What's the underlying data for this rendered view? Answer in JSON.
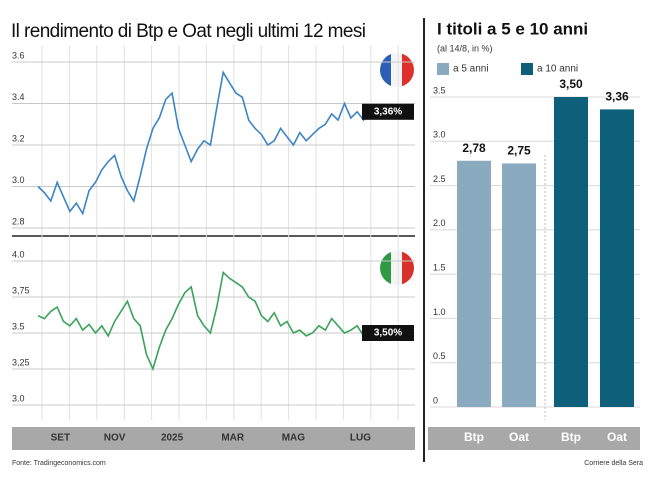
{
  "chart_data": [
    {
      "type": "line",
      "title": "Il rendimento di Btp e Oat negli ultimi 12 mesi",
      "source": "Fonte: Tradingeconomics.com",
      "xlim": [
        0,
        52
      ],
      "xticks": [
        {
          "value": 3.5,
          "label": "SET"
        },
        {
          "value": 12,
          "label": "NOV"
        },
        {
          "value": 21,
          "label": "2025"
        },
        {
          "value": 30.5,
          "label": "MAR"
        },
        {
          "value": 40,
          "label": "MAG"
        },
        {
          "value": 50.5,
          "label": "LUG"
        }
      ],
      "ylim": [
        2.8,
        3.6
      ],
      "yticks": [
        2.8,
        {
          "value": 3,
          "label": "3.0"
        },
        3.2,
        3.4,
        3.6
      ],
      "grid": true,
      "series": [
        {
          "name": "Oat",
          "color": "#3d84c6",
          "values": [
            3.0,
            2.97,
            2.93,
            3.02,
            2.95,
            2.88,
            2.92,
            2.87,
            2.98,
            3.02,
            3.08,
            3.12,
            3.15,
            3.05,
            2.98,
            2.93,
            3.05,
            3.18,
            3.28,
            3.33,
            3.42,
            3.45,
            3.28,
            3.2,
            3.12,
            3.18,
            3.22,
            3.2,
            3.38,
            3.55,
            3.5,
            3.45,
            3.43,
            3.32,
            3.28,
            3.25,
            3.2,
            3.22,
            3.28,
            3.24,
            3.2,
            3.26,
            3.22,
            3.25,
            3.28,
            3.3,
            3.35,
            3.32,
            3.4,
            3.33,
            3.36,
            3.32,
            3.36
          ],
          "value_labels": [
            null,
            null,
            null,
            null,
            null,
            null,
            null,
            null,
            null,
            null,
            null,
            null,
            null,
            null,
            null,
            null,
            null,
            null,
            null,
            null,
            null,
            null,
            null,
            null,
            null,
            null,
            null,
            null,
            null,
            null,
            null,
            null,
            null,
            null,
            null,
            null,
            null,
            null,
            null,
            null,
            null,
            null,
            null,
            null,
            null,
            null,
            null,
            null,
            null,
            null,
            null,
            null,
            "3,36%"
          ]
        }
      ]
    },
    {
      "type": "line",
      "xlim": [
        0,
        52
      ],
      "ylim": [
        3,
        4
      ],
      "yticks": [
        {
          "value": 3,
          "label": "3.0"
        },
        {
          "value": 3.25,
          "label": "3,25"
        },
        3.5,
        {
          "value": 3.75,
          "label": "3,75"
        },
        {
          "value": 4,
          "label": "4.0"
        }
      ],
      "grid": true,
      "series": [
        {
          "name": "Btp",
          "color": "#3aa35a",
          "values": [
            3.62,
            3.6,
            3.65,
            3.68,
            3.58,
            3.55,
            3.6,
            3.52,
            3.56,
            3.5,
            3.55,
            3.48,
            3.58,
            3.65,
            3.72,
            3.6,
            3.55,
            3.35,
            3.25,
            3.4,
            3.52,
            3.6,
            3.7,
            3.78,
            3.82,
            3.62,
            3.55,
            3.5,
            3.68,
            3.92,
            3.88,
            3.85,
            3.82,
            3.75,
            3.72,
            3.62,
            3.58,
            3.64,
            3.55,
            3.58,
            3.5,
            3.52,
            3.48,
            3.5,
            3.55,
            3.52,
            3.6,
            3.55,
            3.5,
            3.52,
            3.55,
            3.48,
            3.5
          ],
          "value_labels": [
            null,
            null,
            null,
            null,
            null,
            null,
            null,
            null,
            null,
            null,
            null,
            null,
            null,
            null,
            null,
            null,
            null,
            null,
            null,
            null,
            null,
            null,
            null,
            null,
            null,
            null,
            null,
            null,
            null,
            null,
            null,
            null,
            null,
            null,
            null,
            null,
            null,
            null,
            null,
            null,
            null,
            null,
            null,
            null,
            null,
            null,
            null,
            null,
            null,
            null,
            null,
            null,
            "3,50%"
          ]
        }
      ]
    },
    {
      "type": "bar",
      "title": "I titoli a 5 e 10 anni",
      "subtitle": "(al 14/8, in %)",
      "credit": "Corriere della Sera",
      "categories": [
        "Btp",
        "Oat",
        "Btp",
        "Oat"
      ],
      "ylim": [
        0,
        3.5
      ],
      "yticks": [
        0,
        {
          "value": 0.5,
          "label": "0.5"
        },
        {
          "value": 1,
          "label": "1.0"
        },
        {
          "value": 1.5,
          "label": "1.5"
        },
        {
          "value": 2,
          "label": "2.0"
        },
        {
          "value": 2.5,
          "label": "2.5"
        },
        {
          "value": 3,
          "label": "3.0"
        },
        {
          "value": 3.5,
          "label": "3.5"
        }
      ],
      "grid": true,
      "series": [
        {
          "name": "a 5 anni",
          "color": "#8aaabf",
          "values": [
            2.78,
            2.75,
            null,
            null
          ],
          "value_labels": [
            "2,78",
            "2,75",
            null,
            null
          ]
        },
        {
          "name": "a 10 anni",
          "color": "#0d5f7a",
          "values": [
            null,
            null,
            3.5,
            3.36
          ],
          "value_labels": [
            null,
            null,
            "3,50",
            "3,36"
          ]
        }
      ]
    }
  ]
}
